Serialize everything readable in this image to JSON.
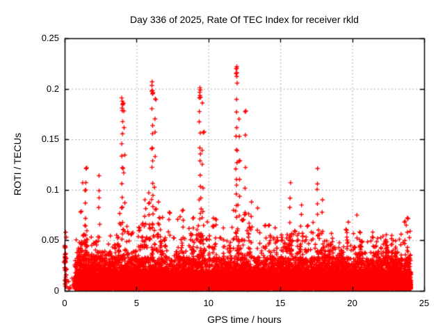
{
  "title": "Day 336 of 2025, Rate Of TEC Index for receiver rkld",
  "chart_data": {
    "type": "scatter",
    "title": "Day 336 of 2025, Rate Of TEC Index for receiver rkld",
    "xlabel": "GPS time / hours",
    "ylabel": "ROTI / TECUs",
    "xlim": [
      0,
      25
    ],
    "ylim": [
      0,
      0.25
    ],
    "xtick_labels": [
      "0",
      "5",
      "10",
      "15",
      "20",
      "25"
    ],
    "xtick_values": [
      0,
      5,
      10,
      15,
      20,
      25
    ],
    "ytick_labels": [
      "0",
      "0.05",
      "0.1",
      "0.15",
      "0.2",
      "0.25"
    ],
    "ytick_values": [
      0,
      0.05,
      0.1,
      0.15,
      0.2,
      0.25
    ],
    "grid": "dashed gray lines at major ticks, both axes",
    "legend": "none",
    "marker": "plus",
    "marker_color": "#ff0000",
    "grid_color": "#a8a8a8",
    "border_color": "#000000",
    "background_color": "#ffffff",
    "series_description": "Rate of TEC index (ROTI) values every ~30 s for all satellites tracked by receiver rkld; dense band 0-0.03 TECU with turbulent texture up to ~0.05-0.09 and isolated scintillation spikes",
    "data_start_hour": 0.72,
    "data_end_hour": 24.08,
    "dense_band_top": 0.028,
    "left_edge_cluster": {
      "hour": 0.07,
      "min": 0.003,
      "max": 0.045,
      "count": 34
    },
    "quiet_gap": {
      "from_hour": 0.15,
      "to_hour": 0.72,
      "stray_points": 8,
      "max_value": 0.012
    },
    "baseline_envelope": [
      [
        0.72,
        0.04
      ],
      [
        1.0,
        0.05
      ],
      [
        1.5,
        0.06
      ],
      [
        2.0,
        0.05
      ],
      [
        2.5,
        0.055
      ],
      [
        3.0,
        0.045
      ],
      [
        3.5,
        0.05
      ],
      [
        4.0,
        0.07
      ],
      [
        4.5,
        0.06
      ],
      [
        5.0,
        0.055
      ],
      [
        5.5,
        0.07
      ],
      [
        6.0,
        0.09
      ],
      [
        6.3,
        0.08
      ],
      [
        6.7,
        0.075
      ],
      [
        7.0,
        0.06
      ],
      [
        7.5,
        0.058
      ],
      [
        8.0,
        0.06
      ],
      [
        8.5,
        0.055
      ],
      [
        9.0,
        0.06
      ],
      [
        9.5,
        0.08
      ],
      [
        10.0,
        0.065
      ],
      [
        10.3,
        0.07
      ],
      [
        10.7,
        0.055
      ],
      [
        11.0,
        0.06
      ],
      [
        11.5,
        0.055
      ],
      [
        11.9,
        0.09
      ],
      [
        12.2,
        0.08
      ],
      [
        12.5,
        0.07
      ],
      [
        13.0,
        0.065
      ],
      [
        13.5,
        0.06
      ],
      [
        14.0,
        0.055
      ],
      [
        14.5,
        0.052
      ],
      [
        15.0,
        0.058
      ],
      [
        15.5,
        0.065
      ],
      [
        16.0,
        0.06
      ],
      [
        16.5,
        0.068
      ],
      [
        17.0,
        0.05
      ],
      [
        17.5,
        0.065
      ],
      [
        18.0,
        0.06
      ],
      [
        18.5,
        0.05
      ],
      [
        19.0,
        0.045
      ],
      [
        19.5,
        0.055
      ],
      [
        20.0,
        0.05
      ],
      [
        20.5,
        0.055
      ],
      [
        21.0,
        0.047
      ],
      [
        21.5,
        0.05
      ],
      [
        22.0,
        0.05
      ],
      [
        22.5,
        0.055
      ],
      [
        23.0,
        0.05
      ],
      [
        23.5,
        0.062
      ],
      [
        24.0,
        0.058
      ]
    ],
    "spikes": [
      {
        "hour": 1.2,
        "peak": 0.107,
        "sparse": true
      },
      {
        "hour": 1.45,
        "peak": 0.121,
        "sparse": false
      },
      {
        "hour": 2.4,
        "peak": 0.114,
        "sparse": false
      },
      {
        "hour": 4.0,
        "peak": 0.191,
        "sparse": false
      },
      {
        "hour": 4.15,
        "peak": 0.178,
        "sparse": true
      },
      {
        "hour": 5.85,
        "peak": 0.097,
        "sparse": false
      },
      {
        "hour": 6.1,
        "peak": 0.207,
        "sparse": false
      },
      {
        "hour": 6.27,
        "peak": 0.19,
        "sparse": true
      },
      {
        "hour": 6.55,
        "peak": 0.088,
        "sparse": false
      },
      {
        "hour": 7.3,
        "peak": 0.077,
        "sparse": false
      },
      {
        "hour": 8.2,
        "peak": 0.08,
        "sparse": false
      },
      {
        "hour": 9.4,
        "peak": 0.201,
        "sparse": false
      },
      {
        "hour": 9.6,
        "peak": 0.186,
        "sparse": true
      },
      {
        "hour": 10.3,
        "peak": 0.072,
        "sparse": false
      },
      {
        "hour": 11.95,
        "peak": 0.222,
        "sparse": false
      },
      {
        "hour": 12.15,
        "peak": 0.17,
        "sparse": true
      },
      {
        "hour": 12.55,
        "peak": 0.178,
        "sparse": true
      },
      {
        "hour": 13.0,
        "peak": 0.088,
        "sparse": false
      },
      {
        "hour": 13.4,
        "peak": 0.082,
        "sparse": true
      },
      {
        "hour": 15.7,
        "peak": 0.107,
        "sparse": false
      },
      {
        "hour": 16.45,
        "peak": 0.085,
        "sparse": false
      },
      {
        "hour": 17.6,
        "peak": 0.121,
        "sparse": false
      },
      {
        "hour": 17.9,
        "peak": 0.09,
        "sparse": true
      },
      {
        "hour": 19.7,
        "peak": 0.068,
        "sparse": true
      },
      {
        "hour": 20.3,
        "peak": 0.075,
        "sparse": true
      },
      {
        "hour": 23.8,
        "peak": 0.065,
        "sparse": false
      }
    ],
    "seed": 42
  }
}
